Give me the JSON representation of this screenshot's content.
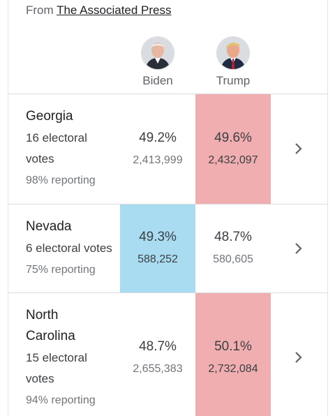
{
  "source": {
    "prefix": "From",
    "link": "The Associated Press"
  },
  "candidates": [
    {
      "name": "Biden",
      "icon": "biden-avatar"
    },
    {
      "name": "Trump",
      "icon": "trump-avatar"
    }
  ],
  "colors": {
    "republican_lead": "#f0aeb0",
    "democrat_lead": "#a9dcf0"
  },
  "states": [
    {
      "name": "Georgia",
      "ev_line1": "16 electoral",
      "ev_line2": "votes",
      "reporting": "98% reporting",
      "biden_pct": "49.2%",
      "biden_votes": "2,413,999",
      "trump_pct": "49.6%",
      "trump_votes": "2,432,097",
      "leader": "Trump"
    },
    {
      "name": "Nevada",
      "ev_line1": "6 electoral votes",
      "reporting": "75% reporting",
      "biden_pct": "49.3%",
      "biden_votes": "588,252",
      "trump_pct": "48.7%",
      "trump_votes": "580,605",
      "leader": "Biden"
    },
    {
      "name_line1": "North",
      "name_line2": "Carolina",
      "ev_line1": "15 electoral",
      "ev_line2": "votes",
      "reporting": "94% reporting",
      "biden_pct": "48.7%",
      "biden_votes": "2,655,383",
      "trump_pct": "50.1%",
      "trump_votes": "2,732,084",
      "leader": "Trump"
    }
  ]
}
